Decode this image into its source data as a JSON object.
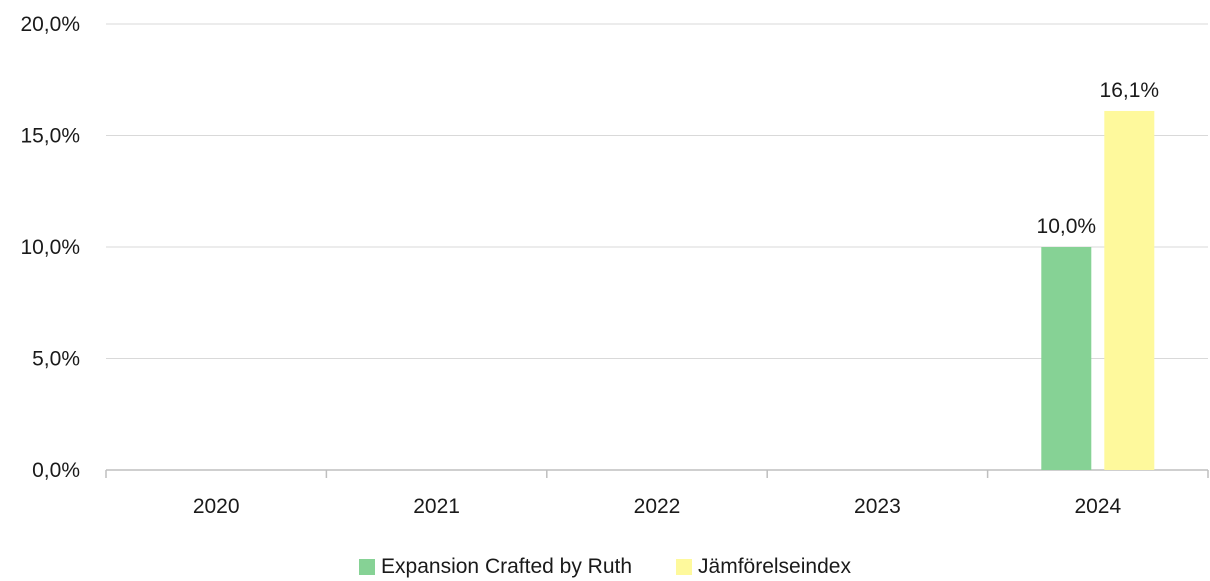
{
  "chart_data": {
    "type": "bar",
    "title": "",
    "xlabel": "",
    "ylabel": "",
    "categories": [
      "2020",
      "2021",
      "2022",
      "2023",
      "2024"
    ],
    "series": [
      {
        "name": "Expansion Crafted by Ruth",
        "color": "#86d295",
        "values": [
          null,
          null,
          null,
          null,
          10.0
        ],
        "labels": [
          "",
          "",
          "",
          "",
          "10,0%"
        ]
      },
      {
        "name": "Jämförelseindex",
        "color": "#fef99c",
        "values": [
          null,
          null,
          null,
          null,
          16.1
        ],
        "labels": [
          "",
          "",
          "",
          "",
          "16,1%"
        ]
      }
    ],
    "ylim": [
      0,
      20
    ],
    "yticks": [
      0,
      5,
      10,
      15,
      20
    ],
    "ytick_labels": [
      "0,0%",
      "5,0%",
      "10,0%",
      "15,0%",
      "20,0%"
    ],
    "grid": true,
    "legend_position": "bottom"
  }
}
